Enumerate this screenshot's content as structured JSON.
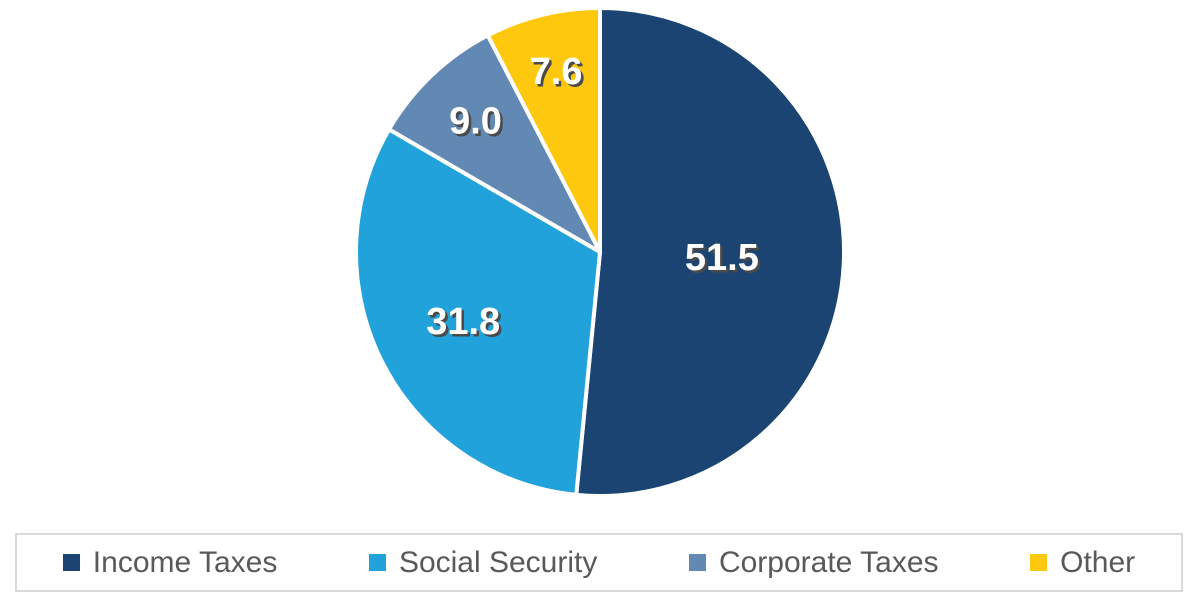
{
  "chart_data": {
    "type": "pie",
    "title": "",
    "categories": [
      "Income Taxes",
      "Social Security",
      "Corporate Taxes",
      "Other"
    ],
    "values": [
      51.5,
      31.8,
      9.0,
      7.6
    ],
    "data_labels": [
      "51.5",
      "31.8",
      "9.0",
      "7.6"
    ],
    "colors": [
      "#1B4472",
      "#21A2DB",
      "#6289B3",
      "#FDC80E"
    ],
    "start_angle_deg": 0,
    "direction": "clockwise",
    "slice_separator_color": "#FFFFFF",
    "data_label_color": "#FFFFFF",
    "data_label_shadow_color": "#4A4A4A",
    "legend_position": "bottom",
    "legend_text_color": "#595959",
    "legend_border_color": "#D9D9D9"
  },
  "legend": {
    "items": [
      {
        "label": "Income Taxes",
        "color": "#1B4472"
      },
      {
        "label": "Social Security",
        "color": "#21A2DB"
      },
      {
        "label": "Corporate Taxes",
        "color": "#6289B3"
      },
      {
        "label": "Other",
        "color": "#FDC80E"
      }
    ]
  }
}
